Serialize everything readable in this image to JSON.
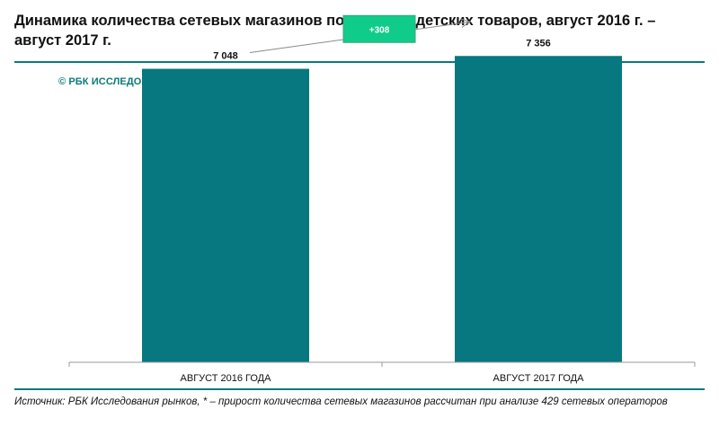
{
  "title": "Динамика количества сетевых магазинов по продаже детских товаров, август 2016 г. – август 2017 г.",
  "brand": "© РБК ИССЛЕДОВАНИЯ РЫНКОВ",
  "source": "Источник: РБК Исследования рынков, * – прирост количества сетевых магазинов рассчитан при анализе 429 сетевых операторов",
  "colors": {
    "bar": "#077780",
    "accent_badge": "#10cc8a",
    "rule": "#0a7a78"
  },
  "chart_data": {
    "type": "bar",
    "categories": [
      "АВГУСТ 2016 ГОДА",
      "АВГУСТ 2017 ГОДА"
    ],
    "values": [
      7048,
      7356
    ],
    "value_labels": [
      "7 048",
      "7 356"
    ],
    "change_label": "+308",
    "ylim": [
      0,
      8700
    ],
    "grid": false,
    "legend": "none"
  }
}
